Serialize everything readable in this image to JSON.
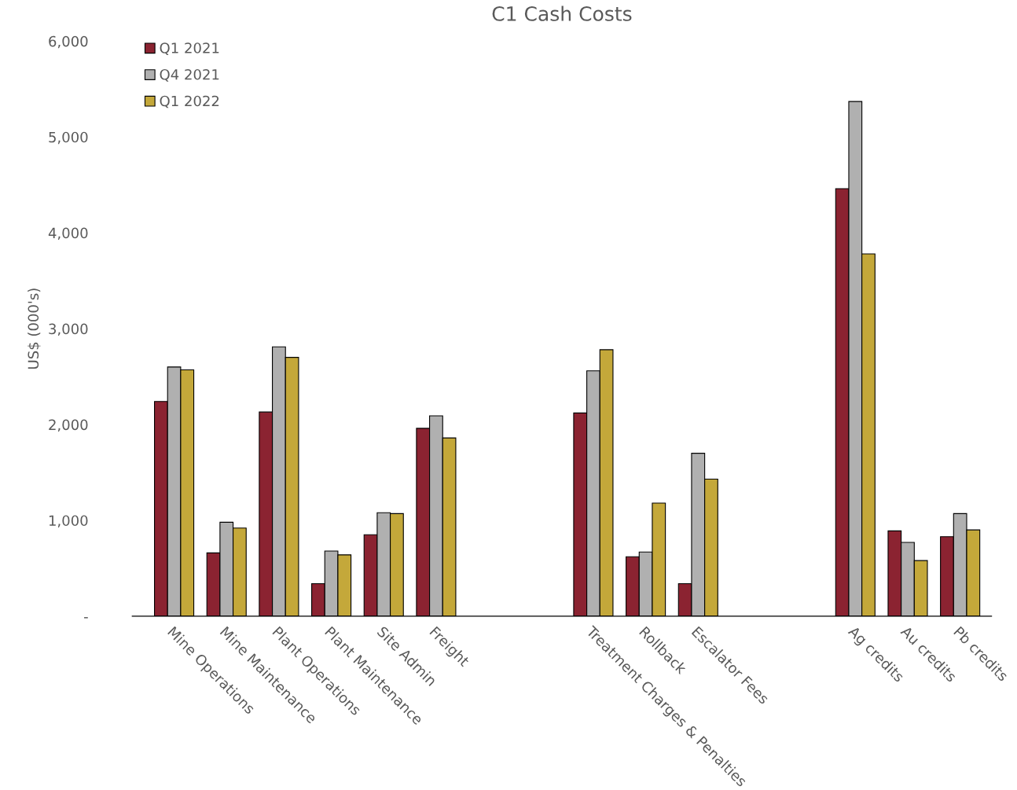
{
  "chart_data": {
    "type": "bar",
    "title": "C1 Cash Costs",
    "ylabel": "US$ (000's)",
    "categories": [
      "Mine Operations",
      "Mine Maintenance",
      "Plant Operations",
      "Plant Maintenance",
      "Site Admin",
      "Freight",
      null,
      null,
      "Treatment Charges & Penalties",
      "Rollback",
      "Escalator Fees",
      null,
      null,
      "Ag credits",
      "Au credits",
      "Pb credits"
    ],
    "series": [
      {
        "name": "Q1 2021",
        "color": "#8b2331",
        "values": [
          2240,
          660,
          2130,
          340,
          850,
          1960,
          null,
          null,
          2120,
          620,
          340,
          null,
          null,
          4460,
          890,
          830
        ]
      },
      {
        "name": "Q4 2021",
        "color": "#b0b0b0",
        "values": [
          2600,
          980,
          2810,
          680,
          1080,
          2090,
          null,
          null,
          2560,
          670,
          1700,
          null,
          null,
          5370,
          770,
          1070
        ]
      },
      {
        "name": "Q1 2022",
        "color": "#c4a83a",
        "values": [
          2570,
          920,
          2700,
          640,
          1070,
          1860,
          null,
          null,
          2780,
          1180,
          1430,
          null,
          null,
          3780,
          580,
          900
        ]
      }
    ],
    "ylim": [
      0,
      6000
    ],
    "yticks": [
      {
        "value": 0,
        "label": "-"
      },
      {
        "value": 1000,
        "label": "1,000"
      },
      {
        "value": 2000,
        "label": "2,000"
      },
      {
        "value": 3000,
        "label": "3,000"
      },
      {
        "value": 4000,
        "label": "4,000"
      },
      {
        "value": 5000,
        "label": "5,000"
      },
      {
        "value": 6000,
        "label": "6,000"
      }
    ],
    "grid": false,
    "legend": "top left"
  }
}
